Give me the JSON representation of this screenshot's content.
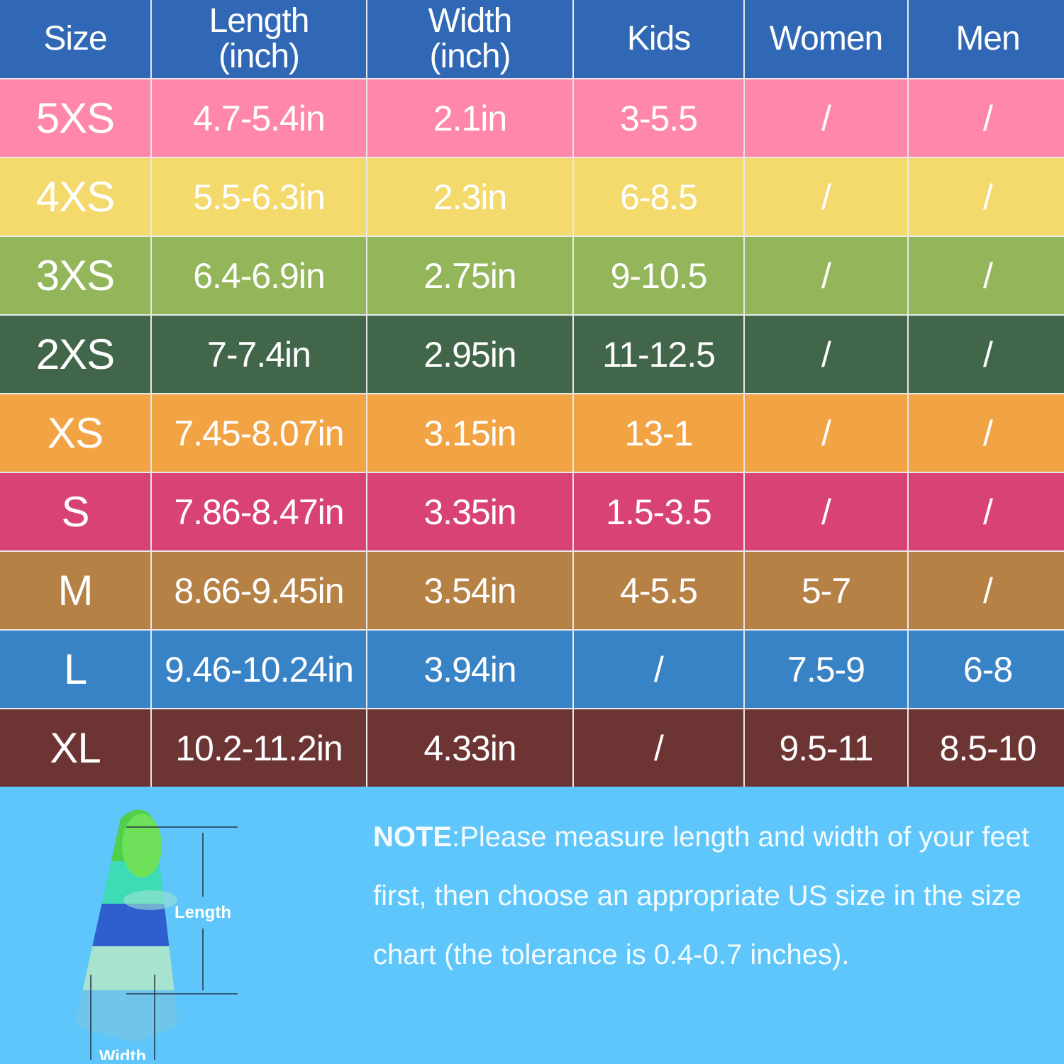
{
  "header": [
    "Size",
    "Length\n(inch)",
    "Width\n(inch)",
    "Kids",
    "Women",
    "Men"
  ],
  "rows": [
    {
      "size": "5XS",
      "length": "4.7-5.4in",
      "width": "2.1in",
      "kids": "3-5.5",
      "women": "/",
      "men": "/",
      "color": "#ff88aa"
    },
    {
      "size": "4XS",
      "length": "5.5-6.3in",
      "width": "2.3in",
      "kids": "6-8.5",
      "women": "/",
      "men": "/",
      "color": "#f4d96d"
    },
    {
      "size": "3XS",
      "length": "6.4-6.9in",
      "width": "2.75in",
      "kids": "9-10.5",
      "women": "/",
      "men": "/",
      "color": "#94b65a"
    },
    {
      "size": "2XS",
      "length": "7-7.4in",
      "width": "2.95in",
      "kids": "11-12.5",
      "women": "/",
      "men": "/",
      "color": "#42664a"
    },
    {
      "size": "XS",
      "length": "7.45-8.07in",
      "width": "3.15in",
      "kids": "13-1",
      "women": "/",
      "men": "/",
      "color": "#f2a444"
    },
    {
      "size": "S",
      "length": "7.86-8.47in",
      "width": "3.35in",
      "kids": "1.5-3.5",
      "women": "/",
      "men": "/",
      "color": "#d94374"
    },
    {
      "size": "M",
      "length": "8.66-9.45in",
      "width": "3.54in",
      "kids": "4-5.5",
      "women": "5-7",
      "men": "/",
      "color": "#b68145"
    },
    {
      "size": "L",
      "length": "9.46-10.24in",
      "width": "3.94in",
      "kids": "/",
      "women": "7.5-9",
      "men": "6-8",
      "color": "#3882c6"
    },
    {
      "size": "XL",
      "length": "10.2-11.2in",
      "width": "4.33in",
      "kids": "/",
      "women": "9.5-11",
      "men": "8.5-10",
      "color": "#6c3533"
    }
  ],
  "colors": {
    "header": "#3068b6",
    "bottom": "#5ec6fb"
  },
  "diagram": {
    "length_label": "Length",
    "width_label": "Width"
  },
  "note": {
    "prefix": "NOTE",
    "text": ":Please measure length and width of your feet first, then choose an appropriate US size in the size chart (the tolerance is 0.4-0.7 inches)."
  }
}
